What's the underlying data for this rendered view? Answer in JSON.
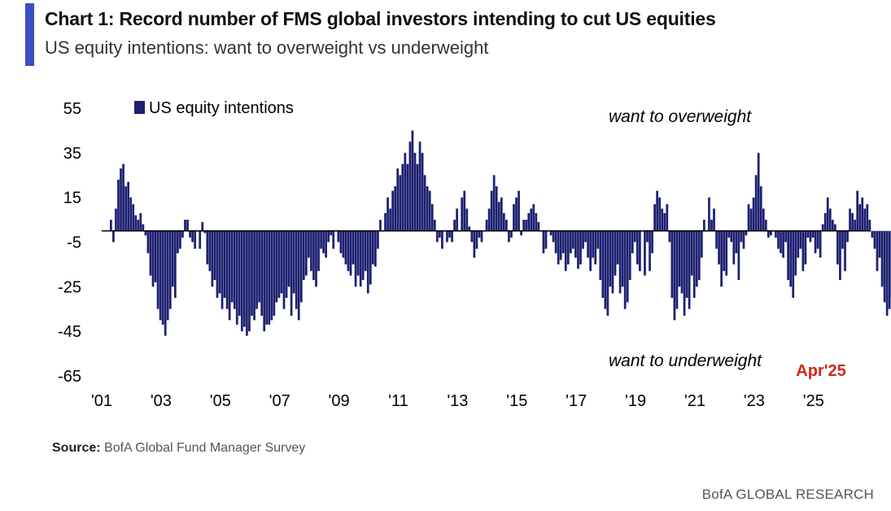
{
  "header": {
    "title": "Chart 1: Record number of FMS global investors intending to cut US equities",
    "subtitle": "US equity intentions: want to overweight vs underweight"
  },
  "footer": {
    "source_label": "Source:",
    "source_text": "BofA Global Fund Manager Survey",
    "brand": "BofA GLOBAL RESEARCH"
  },
  "colors": {
    "bar": "#1c2070",
    "accent": "#3a4fc4",
    "highlight": "#d0271d"
  },
  "chart_data": {
    "type": "bar",
    "legend": [
      "US equity intentions"
    ],
    "legend_position": "top-left",
    "grid": false,
    "ylim": [
      -65,
      55
    ],
    "yticks": [
      "55",
      "35",
      "15",
      "-5",
      "-25",
      "-45",
      "-65"
    ],
    "xticks": [
      "'01",
      "'03",
      "'05",
      "'07",
      "'09",
      "'11",
      "'13",
      "'15",
      "'17",
      "'19",
      "'21",
      "'23",
      "'25"
    ],
    "annotations": {
      "overweight": "want to overweight",
      "underweight": "want to underweight",
      "callout": "Apr'25"
    },
    "series": [
      {
        "name": "US equity intentions",
        "x_start": 2001.0,
        "x_step_months": 1,
        "values": [
          5,
          -5,
          10,
          23,
          28,
          30,
          20,
          22,
          15,
          12,
          7,
          5,
          8,
          3,
          -2,
          -10,
          -20,
          -25,
          -23,
          -35,
          -40,
          -42,
          -47,
          -40,
          -35,
          -25,
          -30,
          -10,
          -8,
          -3,
          5,
          5,
          -3,
          -5,
          -8,
          0,
          -8,
          4,
          -1,
          -15,
          -18,
          -25,
          -22,
          -30,
          -28,
          -35,
          -30,
          -35,
          -40,
          -32,
          -35,
          -42,
          -38,
          -45,
          -43,
          -47,
          -45,
          -38,
          -40,
          -35,
          -32,
          -38,
          -45,
          -42,
          -42,
          -40,
          -38,
          -32,
          -30,
          -28,
          -35,
          -30,
          -25,
          -38,
          -28,
          -35,
          -40,
          -32,
          -22,
          -20,
          -12,
          -18,
          -22,
          -25,
          -18,
          -8,
          -10,
          -12,
          -5,
          -2,
          -8,
          0,
          -5,
          -10,
          -12,
          -15,
          -18,
          -20,
          -15,
          -25,
          -20,
          -25,
          -22,
          -18,
          -28,
          -24,
          -15,
          -16,
          -8,
          5,
          0,
          8,
          15,
          10,
          18,
          20,
          28,
          25,
          30,
          35,
          30,
          40,
          45,
          35,
          30,
          40,
          35,
          25,
          20,
          18,
          12,
          5,
          -5,
          -3,
          -8,
          0,
          -5,
          -3,
          -5,
          5,
          10,
          0,
          15,
          18,
          10,
          2,
          -5,
          -12,
          -8,
          -3,
          -5,
          0,
          5,
          10,
          18,
          25,
          20,
          13,
          15,
          8,
          5,
          -5,
          -3,
          12,
          15,
          18,
          -2,
          5,
          5,
          8,
          10,
          12,
          8,
          4,
          0,
          -10,
          -8,
          0,
          -2,
          -5,
          -10,
          -15,
          -13,
          -10,
          -18,
          -15,
          -10,
          -8,
          -12,
          -17,
          -15,
          -8,
          -5,
          -12,
          -18,
          -12,
          -15,
          -8,
          -22,
          -30,
          -35,
          -38,
          -25,
          -28,
          -20,
          -15,
          -28,
          -25,
          -35,
          -32,
          -22,
          -10,
          -5,
          -15,
          -18,
          0,
          -20,
          -5,
          -18,
          -10,
          12,
          18,
          15,
          10,
          8,
          12,
          -5,
          -30,
          -40,
          -35,
          -25,
          -28,
          -38,
          -30,
          -35,
          -20,
          -30,
          -25,
          -22,
          -12,
          5,
          0,
          15,
          5,
          10,
          -8,
          -15,
          -25,
          -18,
          -20,
          -3,
          -5,
          -15,
          -10,
          -22,
          -5,
          -8,
          -2,
          12,
          10,
          15,
          25,
          35,
          20,
          10,
          5,
          -3,
          -2,
          0,
          -3,
          -8,
          -10,
          -12,
          -5,
          -22,
          -25,
          -30,
          -20,
          -12,
          -8,
          -18,
          -15,
          -3,
          -5,
          -3,
          -10,
          -8,
          -12,
          3,
          8,
          15,
          10,
          5,
          3,
          -15,
          -22,
          -8,
          -18,
          -5,
          10,
          8,
          5,
          18,
          12,
          15,
          10,
          12,
          5,
          -3,
          -8,
          -18,
          -12,
          -25,
          -32,
          -38,
          -35,
          -30,
          -30,
          -20,
          -15,
          -10,
          5,
          8,
          5,
          4,
          0,
          -2,
          -5,
          -3,
          -8,
          2,
          18,
          5,
          2,
          12,
          10,
          15,
          20,
          18,
          8,
          15,
          22,
          20,
          5,
          -3,
          -20,
          -35,
          -43,
          -49
        ]
      }
    ]
  }
}
